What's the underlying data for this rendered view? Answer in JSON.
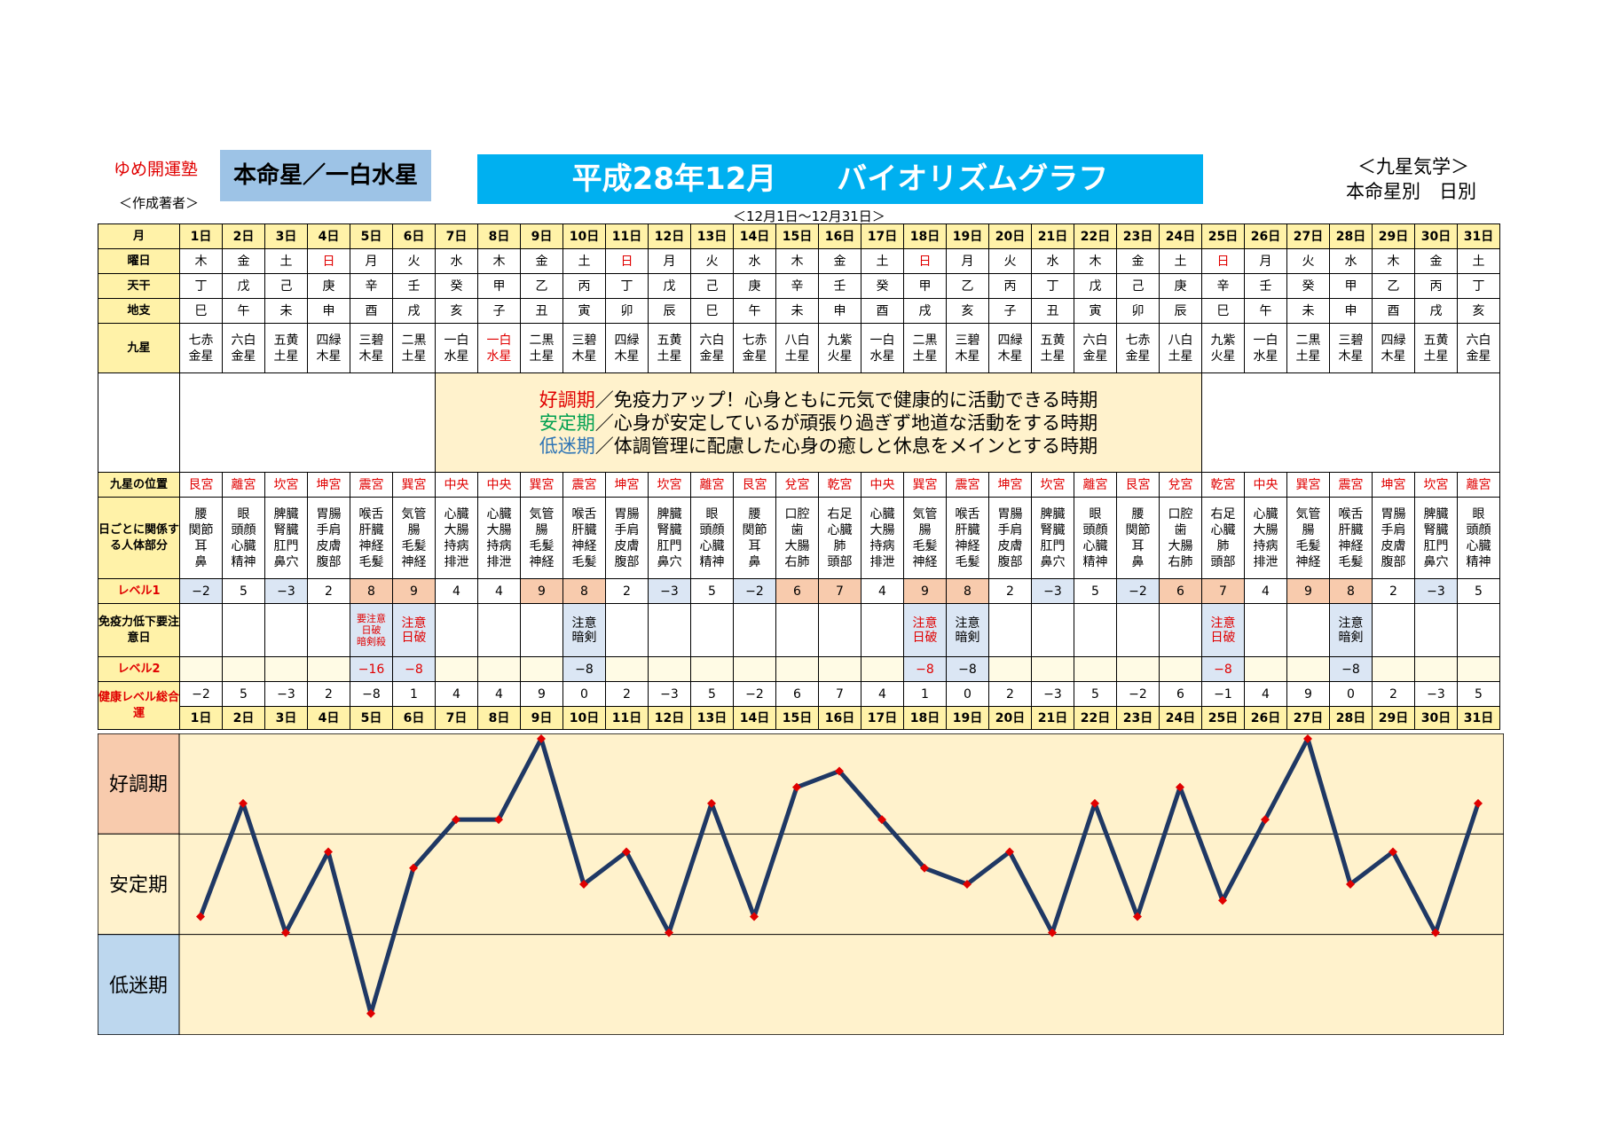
{
  "header": {
    "brand": "ゆめ開運塾",
    "author": "＜作成著者＞",
    "honmeisei": "本命星／一白水星",
    "title": "平成28年12月　　バイオリズムグラフ",
    "date_range": "＜12月1日～12月31日＞",
    "subtitle1": "＜九星気学＞",
    "subtitle2": "本命星別　日別"
  },
  "row_labels": {
    "month": "月",
    "weekday": "曜日",
    "tenkan": "天干",
    "chishi": "地支",
    "kyusei": "九星",
    "position": "九星の位置",
    "body": "日ごとに関係する人体部分",
    "level1": "レベル1",
    "immunity": "免疫力低下要注意日",
    "level2": "レベル2",
    "health": "健康レベル総合運"
  },
  "legend": {
    "good_term": "好調期",
    "good_text": "／免疫力アップ！心身ともに元気で健康的に活動できる時期",
    "stable_term": "安定期",
    "stable_text": "／心身が安定しているが頑張り過ぎず地道な活動をする時期",
    "low_term": "低迷期",
    "low_text": "／体調管理に配慮した心身の癒しと休息をメインとする時期"
  },
  "days": [
    "1日",
    "2日",
    "3日",
    "4日",
    "5日",
    "6日",
    "7日",
    "8日",
    "9日",
    "10日",
    "11日",
    "12日",
    "13日",
    "14日",
    "15日",
    "16日",
    "17日",
    "18日",
    "19日",
    "20日",
    "21日",
    "22日",
    "23日",
    "24日",
    "25日",
    "26日",
    "27日",
    "28日",
    "29日",
    "30日",
    "31日"
  ],
  "weekdays": [
    "木",
    "金",
    "土",
    "日",
    "月",
    "火",
    "水",
    "木",
    "金",
    "土",
    "日",
    "月",
    "火",
    "水",
    "木",
    "金",
    "土",
    "日",
    "月",
    "火",
    "水",
    "木",
    "金",
    "土",
    "日",
    "月",
    "火",
    "水",
    "木",
    "金",
    "土"
  ],
  "tenkan": [
    "丁",
    "戊",
    "己",
    "庚",
    "辛",
    "壬",
    "癸",
    "甲",
    "乙",
    "丙",
    "丁",
    "戊",
    "己",
    "庚",
    "辛",
    "壬",
    "癸",
    "甲",
    "乙",
    "丙",
    "丁",
    "戊",
    "己",
    "庚",
    "辛",
    "壬",
    "癸",
    "甲",
    "乙",
    "丙",
    "丁"
  ],
  "chishi": [
    "巳",
    "午",
    "未",
    "申",
    "酉",
    "戌",
    "亥",
    "子",
    "丑",
    "寅",
    "卯",
    "辰",
    "巳",
    "午",
    "未",
    "申",
    "酉",
    "戌",
    "亥",
    "子",
    "丑",
    "寅",
    "卯",
    "辰",
    "巳",
    "午",
    "未",
    "申",
    "酉",
    "戌",
    "亥"
  ],
  "kyusei": [
    [
      "七赤",
      "金星"
    ],
    [
      "六白",
      "金星"
    ],
    [
      "五黄",
      "土星"
    ],
    [
      "四緑",
      "木星"
    ],
    [
      "三碧",
      "木星"
    ],
    [
      "二黒",
      "土星"
    ],
    [
      "一白",
      "水星"
    ],
    [
      "一白",
      "水星"
    ],
    [
      "二黒",
      "土星"
    ],
    [
      "三碧",
      "木星"
    ],
    [
      "四緑",
      "木星"
    ],
    [
      "五黄",
      "土星"
    ],
    [
      "六白",
      "金星"
    ],
    [
      "七赤",
      "金星"
    ],
    [
      "八白",
      "土星"
    ],
    [
      "九紫",
      "火星"
    ],
    [
      "一白",
      "水星"
    ],
    [
      "二黒",
      "土星"
    ],
    [
      "三碧",
      "木星"
    ],
    [
      "四緑",
      "木星"
    ],
    [
      "五黄",
      "土星"
    ],
    [
      "六白",
      "金星"
    ],
    [
      "七赤",
      "金星"
    ],
    [
      "八白",
      "土星"
    ],
    [
      "九紫",
      "火星"
    ],
    [
      "一白",
      "水星"
    ],
    [
      "二黒",
      "土星"
    ],
    [
      "三碧",
      "木星"
    ],
    [
      "四緑",
      "木星"
    ],
    [
      "五黄",
      "土星"
    ],
    [
      "六白",
      "金星"
    ]
  ],
  "positions": [
    "艮宮",
    "離宮",
    "坎宮",
    "坤宮",
    "震宮",
    "巽宮",
    "中央",
    "中央",
    "巽宮",
    "震宮",
    "坤宮",
    "坎宮",
    "離宮",
    "艮宮",
    "兌宮",
    "乾宮",
    "中央",
    "巽宮",
    "震宮",
    "坤宮",
    "坎宮",
    "離宮",
    "艮宮",
    "兌宮",
    "乾宮",
    "中央",
    "巽宮",
    "震宮",
    "坤宮",
    "坎宮",
    "離宮"
  ],
  "body_parts": [
    [
      "腰",
      "関節",
      "耳",
      "鼻"
    ],
    [
      "眼",
      "頭顔",
      "心臓",
      "精神"
    ],
    [
      "脾臓",
      "腎臓",
      "肛門",
      "鼻穴"
    ],
    [
      "胃腸",
      "手肩",
      "皮膚",
      "腹部"
    ],
    [
      "喉舌",
      "肝臓",
      "神経",
      "毛髪"
    ],
    [
      "気管",
      "腸",
      "毛髪",
      "神経"
    ],
    [
      "心臓",
      "大腸",
      "持病",
      "排泄"
    ],
    [
      "心臓",
      "大腸",
      "持病",
      "排泄"
    ],
    [
      "気管",
      "腸",
      "毛髪",
      "神経"
    ],
    [
      "喉舌",
      "肝臓",
      "神経",
      "毛髪"
    ],
    [
      "胃腸",
      "手肩",
      "皮膚",
      "腹部"
    ],
    [
      "脾臓",
      "腎臓",
      "肛門",
      "鼻穴"
    ],
    [
      "眼",
      "頭顔",
      "心臓",
      "精神"
    ],
    [
      "腰",
      "関節",
      "耳",
      "鼻"
    ],
    [
      "口腔",
      "歯",
      "大腸",
      "右肺"
    ],
    [
      "右足",
      "心臓",
      "肺",
      "頭部"
    ],
    [
      "心臓",
      "大腸",
      "持病",
      "排泄"
    ],
    [
      "気管",
      "腸",
      "毛髪",
      "神経"
    ],
    [
      "喉舌",
      "肝臓",
      "神経",
      "毛髪"
    ],
    [
      "胃腸",
      "手肩",
      "皮膚",
      "腹部"
    ],
    [
      "脾臓",
      "腎臓",
      "肛門",
      "鼻穴"
    ],
    [
      "眼",
      "頭顔",
      "心臓",
      "精神"
    ],
    [
      "腰",
      "関節",
      "耳",
      "鼻"
    ],
    [
      "口腔",
      "歯",
      "大腸",
      "右肺"
    ],
    [
      "右足",
      "心臓",
      "肺",
      "頭部"
    ],
    [
      "心臓",
      "大腸",
      "持病",
      "排泄"
    ],
    [
      "気管",
      "腸",
      "毛髪",
      "神経"
    ],
    [
      "喉舌",
      "肝臓",
      "神経",
      "毛髪"
    ],
    [
      "胃腸",
      "手肩",
      "皮膚",
      "腹部"
    ],
    [
      "脾臓",
      "腎臓",
      "肛門",
      "鼻穴"
    ],
    [
      "眼",
      "頭顔",
      "心臓",
      "精神"
    ]
  ],
  "level1": [
    "−2",
    "5",
    "−3",
    "2",
    "8",
    "9",
    "4",
    "4",
    "9",
    "8",
    "2",
    "−3",
    "5",
    "−2",
    "6",
    "7",
    "4",
    "9",
    "8",
    "2",
    "−3",
    "5",
    "−2",
    "6",
    "7",
    "4",
    "9",
    "8",
    "2",
    "−3",
    "5"
  ],
  "immunity": [
    [],
    [],
    [],
    [],
    [
      "要注意",
      "日破",
      "暗剣殺"
    ],
    [
      "注意",
      "日破"
    ],
    [],
    [],
    [],
    [
      "注意",
      "暗剣"
    ],
    [],
    [],
    [],
    [],
    [],
    [],
    [],
    [
      "注意",
      "日破"
    ],
    [
      "注意",
      "暗剣"
    ],
    [],
    [],
    [],
    [],
    [],
    [
      "注意",
      "日破"
    ],
    [],
    [],
    [
      "注意",
      "暗剣"
    ],
    [],
    [],
    []
  ],
  "level2": [
    "",
    "",
    "",
    "",
    "−16",
    "−8",
    "",
    "",
    "",
    "−8",
    "",
    "",
    "",
    "",
    "",
    "",
    "",
    "−8",
    "−8",
    "",
    "",
    "",
    "",
    "",
    "−8",
    "",
    "",
    "−8",
    "",
    "",
    ""
  ],
  "health": [
    "−2",
    "5",
    "−3",
    "2",
    "−8",
    "1",
    "4",
    "4",
    "9",
    "0",
    "2",
    "−3",
    "5",
    "−2",
    "6",
    "7",
    "4",
    "1",
    "0",
    "2",
    "−3",
    "5",
    "−2",
    "6",
    "−1",
    "4",
    "9",
    "0",
    "2",
    "−3",
    "5"
  ],
  "colors": {
    "yellow_cell": "#fff2a8",
    "good_band": "#f8cbad",
    "stable_band": "#fff2cc",
    "low_band": "#bdd7ee",
    "line": "#1f3864",
    "marker": "#e00000",
    "title_bg": "#00b0f0",
    "honmei_bg": "#9dc3e6"
  },
  "chart_data": {
    "type": "line",
    "x": [
      "1日",
      "2日",
      "3日",
      "4日",
      "5日",
      "6日",
      "7日",
      "8日",
      "9日",
      "10日",
      "11日",
      "12日",
      "13日",
      "14日",
      "15日",
      "16日",
      "17日",
      "18日",
      "19日",
      "20日",
      "21日",
      "22日",
      "23日",
      "24日",
      "25日",
      "26日",
      "27日",
      "28日",
      "29日",
      "30日",
      "31日"
    ],
    "y": [
      -2,
      5,
      -3,
      2,
      -8,
      1,
      4,
      4,
      9,
      0,
      2,
      -3,
      5,
      -2,
      6,
      7,
      4,
      1,
      0,
      2,
      -3,
      5,
      -2,
      6,
      -1,
      4,
      9,
      0,
      2,
      -3,
      5
    ],
    "ylim": [
      -9,
      9
    ],
    "bands": [
      "好調期",
      "安定期",
      "低迷期"
    ],
    "grid": false,
    "marker": "diamond"
  }
}
